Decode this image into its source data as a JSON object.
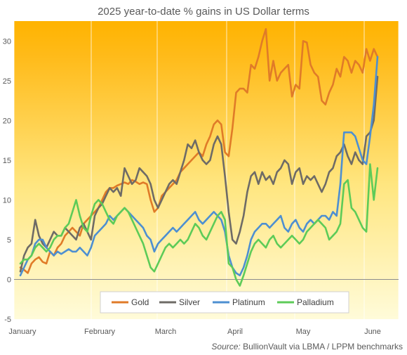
{
  "chart_data": {
    "type": "line",
    "title": "2025 year-to-date  % gains in US Dollar terms",
    "xlabel": "",
    "ylabel": "",
    "x_tick_labels": [
      "January",
      "February",
      "March",
      "April",
      "May",
      "June"
    ],
    "ylim": [
      -5,
      32.5
    ],
    "yticks": [
      -5,
      0,
      5,
      10,
      15,
      20,
      25,
      30
    ],
    "grid": "vertical",
    "legend_position": "bottom-center",
    "background": "gradient orange to pale yellow",
    "source_label": "Source:",
    "source_text": "BullionVault via LBMA / LPPM benchmarks",
    "series": [
      {
        "name": "Gold",
        "color": "#E07B28",
        "values": [
          1.5,
          1.2,
          0.8,
          2.0,
          2.5,
          2.8,
          2.2,
          2.0,
          3.5,
          3.0,
          4.0,
          4.5,
          5.5,
          6.0,
          6.5,
          6.0,
          5.5,
          7.0,
          7.5,
          8.0,
          8.5,
          9.0,
          10.0,
          11.0,
          11.5,
          11.5,
          11.8,
          12.0,
          12.2,
          12.0,
          12.5,
          12.3,
          12.0,
          12.2,
          12.0,
          10.0,
          8.5,
          9.0,
          10.5,
          11.0,
          11.5,
          12.0,
          12.5,
          13.5,
          14.0,
          14.5,
          15.0,
          15.5,
          16.0,
          15.5,
          17.0,
          18.0,
          19.5,
          20.0,
          19.5,
          16.0,
          15.5,
          19.0,
          23.5,
          24.0,
          24.0,
          23.5,
          27.0,
          26.5,
          28.0,
          30.0,
          31.5,
          25.0,
          27.5,
          25.0,
          26.0,
          26.5,
          27.0,
          23.0,
          24.5,
          24.0,
          30.0,
          29.8,
          27.0,
          26.0,
          25.5,
          22.5,
          22.0,
          23.5,
          24.5,
          26.5,
          25.5,
          28.0,
          27.5,
          26.0,
          27.5,
          27.0,
          26.0,
          29.0,
          27.5,
          29.0,
          28.0
        ]
      },
      {
        "name": "Silver",
        "color": "#6E6B66",
        "values": [
          1.0,
          3.0,
          4.0,
          4.5,
          7.5,
          5.5,
          4.5,
          4.0,
          5.0,
          6.0,
          5.5,
          5.5,
          6.5,
          6.0,
          5.5,
          5.0,
          6.5,
          7.0,
          6.0,
          5.0,
          8.0,
          9.0,
          9.5,
          10.5,
          11.5,
          11.0,
          11.5,
          10.5,
          14.0,
          13.0,
          12.0,
          12.5,
          14.0,
          13.5,
          13.0,
          12.0,
          10.0,
          9.0,
          10.0,
          11.0,
          12.0,
          12.5,
          12.0,
          13.5,
          15.0,
          17.0,
          16.5,
          17.5,
          16.0,
          15.0,
          14.5,
          15.0,
          17.0,
          18.0,
          17.0,
          13.0,
          8.5,
          5.0,
          4.5,
          6.0,
          8.0,
          11.0,
          13.0,
          13.5,
          12.0,
          13.5,
          12.5,
          13.0,
          12.0,
          13.5,
          14.0,
          15.0,
          14.5,
          12.0,
          13.5,
          14.0,
          12.0,
          13.0,
          12.5,
          13.0,
          12.0,
          11.0,
          12.0,
          13.5,
          14.0,
          15.5,
          16.0,
          17.0,
          15.5,
          14.5,
          16.0,
          15.0,
          14.5,
          18.0,
          18.5,
          20.0,
          25.5
        ]
      },
      {
        "name": "Platinum",
        "color": "#4D8FD1",
        "values": [
          0.5,
          1.5,
          2.5,
          3.0,
          4.5,
          5.0,
          5.0,
          4.0,
          3.5,
          3.0,
          3.5,
          3.2,
          3.5,
          3.8,
          3.5,
          3.5,
          4.0,
          3.5,
          3.0,
          4.0,
          5.5,
          6.0,
          6.5,
          7.0,
          8.0,
          7.5,
          8.0,
          8.5,
          9.0,
          8.5,
          8.0,
          7.5,
          7.0,
          6.5,
          5.5,
          5.0,
          3.5,
          4.5,
          5.0,
          5.5,
          6.0,
          6.5,
          6.0,
          6.5,
          7.0,
          7.5,
          8.0,
          8.5,
          7.5,
          7.0,
          7.5,
          8.0,
          8.5,
          8.0,
          7.5,
          6.0,
          3.0,
          1.5,
          0.8,
          0.5,
          1.5,
          3.0,
          5.0,
          6.0,
          6.5,
          7.0,
          7.0,
          6.5,
          7.0,
          7.5,
          8.0,
          6.5,
          6.0,
          7.0,
          7.5,
          6.5,
          6.0,
          7.0,
          7.5,
          7.0,
          7.5,
          8.0,
          8.0,
          7.5,
          8.5,
          8.0,
          12.0,
          18.5,
          18.5,
          18.5,
          18.0,
          16.5,
          15.0,
          14.5,
          18.0,
          22.0,
          28.0
        ]
      },
      {
        "name": "Palladium",
        "color": "#5DCB58",
        "values": [
          2.0,
          2.5,
          2.5,
          3.0,
          4.0,
          4.5,
          4.0,
          3.5,
          4.0,
          5.0,
          5.5,
          5.5,
          6.5,
          7.0,
          8.5,
          10.0,
          8.0,
          6.5,
          6.0,
          8.0,
          9.5,
          10.0,
          9.5,
          8.5,
          7.5,
          7.0,
          8.0,
          8.5,
          9.0,
          8.5,
          7.5,
          6.5,
          5.5,
          4.5,
          3.0,
          1.5,
          1.0,
          2.0,
          3.0,
          4.0,
          4.5,
          4.0,
          4.5,
          5.0,
          4.5,
          5.0,
          6.0,
          7.0,
          6.5,
          5.5,
          5.0,
          6.0,
          7.0,
          8.0,
          8.5,
          7.5,
          2.0,
          1.5,
          0.0,
          -0.8,
          0.5,
          2.0,
          3.5,
          4.5,
          5.0,
          4.5,
          4.0,
          5.0,
          5.5,
          4.5,
          4.0,
          4.5,
          5.0,
          5.5,
          5.0,
          4.5,
          5.0,
          6.0,
          6.5,
          7.0,
          7.5,
          7.0,
          6.5,
          5.0,
          5.5,
          6.0,
          7.0,
          12.0,
          12.5,
          9.0,
          8.5,
          7.5,
          6.5,
          6.0,
          14.5,
          10.0,
          14.0
        ]
      }
    ]
  }
}
